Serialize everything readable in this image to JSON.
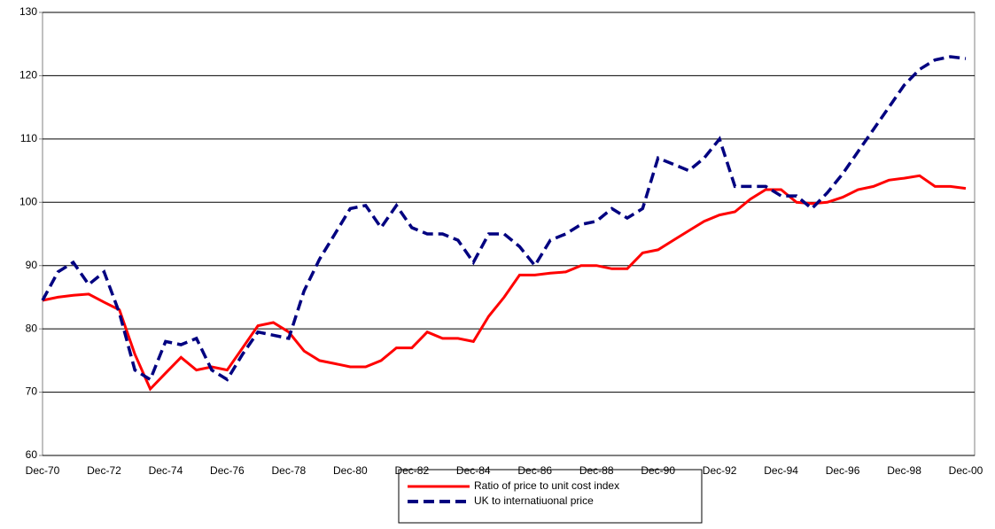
{
  "chart_data": {
    "type": "line",
    "categories": [
      "Dec-70",
      null,
      null,
      null,
      "Dec-72",
      null,
      null,
      null,
      "Dec-74",
      null,
      null,
      null,
      "Dec-76",
      null,
      null,
      null,
      "Dec-78",
      null,
      null,
      null,
      "Dec-80",
      null,
      null,
      null,
      "Dec-82",
      null,
      null,
      null,
      "Dec-84",
      null,
      null,
      null,
      "Dec-86",
      null,
      null,
      null,
      "Dec-88",
      null,
      null,
      null,
      "Dec-90",
      null,
      null,
      null,
      "Dec-92",
      null,
      null,
      null,
      "Dec-94",
      null,
      null,
      null,
      "Dec-96",
      null,
      null,
      null,
      "Dec-98",
      null,
      null,
      null,
      "Dec-00"
    ],
    "series": [
      {
        "name": "Ratio of price to unit cost index",
        "color": "#ff0000",
        "dash": false,
        "values": [
          84.5,
          85,
          85.3,
          85.5,
          84.2,
          83,
          76,
          70.5,
          73,
          75.5,
          73.5,
          74,
          73.5,
          77,
          80.5,
          81,
          79.5,
          76.5,
          75,
          74.5,
          74,
          74,
          75,
          77,
          77,
          79.5,
          78.5,
          78.5,
          78,
          82,
          85,
          88.5,
          88.5,
          88.8,
          89,
          90,
          90,
          89.5,
          89.5,
          92,
          92.5,
          94,
          95.5,
          97,
          98,
          98.5,
          100.5,
          102,
          102,
          100,
          99.8,
          100,
          100.8,
          102,
          102.5,
          103.5,
          103.8,
          104.2,
          102.5,
          102.5,
          102.2
        ]
      },
      {
        "name": "UK to internatiuonal price",
        "color": "#000080",
        "dash": true,
        "values": [
          84.5,
          89,
          90.5,
          87,
          89,
          82.5,
          73.5,
          72,
          78,
          77.5,
          78.5,
          73.5,
          72,
          76,
          79.5,
          79,
          78.5,
          86,
          91,
          95,
          99,
          99.5,
          96,
          99.5,
          96,
          95,
          95,
          94,
          90.5,
          95,
          95,
          93,
          90,
          94,
          95,
          96.5,
          97,
          99,
          97.5,
          99,
          107,
          106,
          105,
          107,
          110,
          102.5,
          102.5,
          102.5,
          101,
          101,
          99,
          101.5,
          104.5,
          108,
          111.5,
          115,
          118.5,
          121,
          122.5,
          123,
          122.7
        ]
      }
    ],
    "ylim": [
      60,
      130
    ],
    "yticks": [
      60,
      70,
      80,
      90,
      100,
      110,
      120,
      130
    ],
    "grid": true
  }
}
